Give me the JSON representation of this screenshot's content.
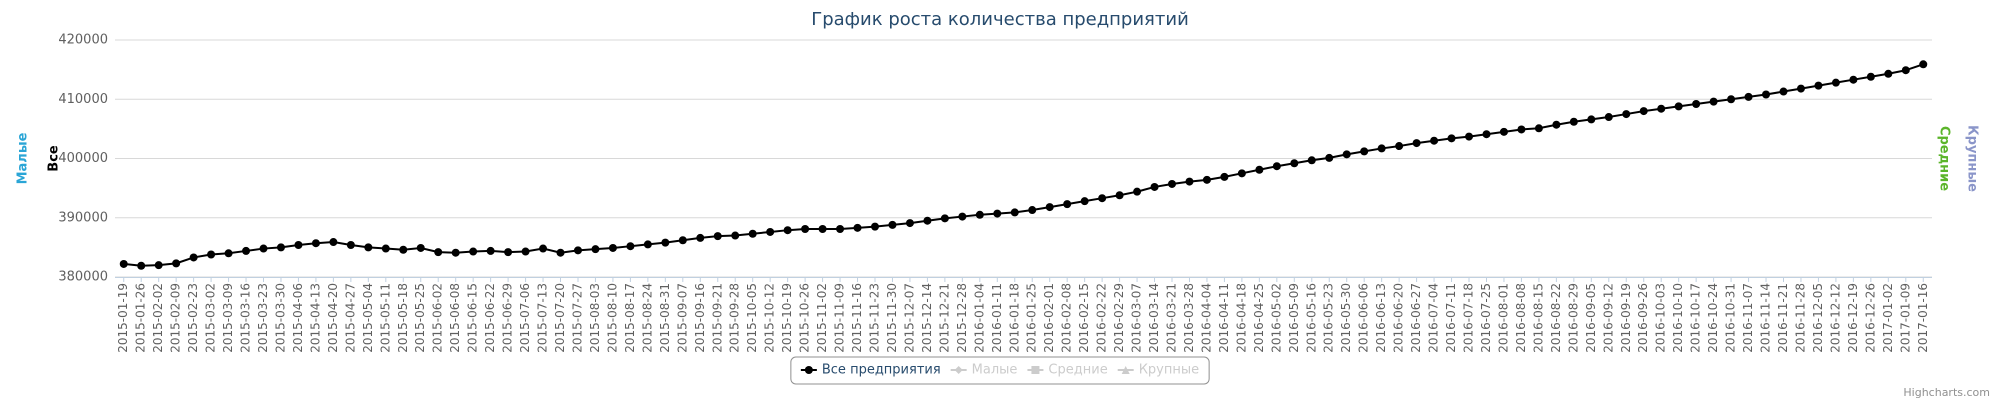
{
  "chart_data": {
    "type": "line",
    "title": "График роста количества предприятий",
    "axis_titles_left": [
      {
        "text": "Малые",
        "color": "#2aa5d6"
      },
      {
        "text": "Все",
        "color": "#000000"
      }
    ],
    "axis_titles_right": [
      {
        "text": "Средние",
        "color": "#5bb52a"
      },
      {
        "text": "Крупные",
        "color": "#8a95c9"
      }
    ],
    "credits": "Highcharts.com",
    "grid": true,
    "ylim": [
      380000,
      420000
    ],
    "yticks": [
      380000,
      390000,
      400000,
      410000,
      420000
    ],
    "categories": [
      "2015-01-19",
      "2015-01-26",
      "2015-02-02",
      "2015-02-09",
      "2015-02-23",
      "2015-03-02",
      "2015-03-09",
      "2015-03-16",
      "2015-03-23",
      "2015-03-30",
      "2015-04-06",
      "2015-04-13",
      "2015-04-20",
      "2015-04-27",
      "2015-05-04",
      "2015-05-11",
      "2015-05-18",
      "2015-05-25",
      "2015-06-02",
      "2015-06-08",
      "2015-06-15",
      "2015-06-22",
      "2015-06-29",
      "2015-07-06",
      "2015-07-13",
      "2015-07-20",
      "2015-07-27",
      "2015-08-03",
      "2015-08-10",
      "2015-08-17",
      "2015-08-24",
      "2015-08-31",
      "2015-09-07",
      "2015-09-16",
      "2015-09-21",
      "2015-09-28",
      "2015-10-05",
      "2015-10-12",
      "2015-10-19",
      "2015-10-26",
      "2015-11-02",
      "2015-11-09",
      "2015-11-16",
      "2015-11-23",
      "2015-11-30",
      "2015-12-07",
      "2015-12-14",
      "2015-12-21",
      "2015-12-28",
      "2016-01-04",
      "2016-01-11",
      "2016-01-18",
      "2016-01-25",
      "2016-02-01",
      "2016-02-08",
      "2016-02-15",
      "2016-02-22",
      "2016-02-29",
      "2016-03-07",
      "2016-03-14",
      "2016-03-21",
      "2016-03-28",
      "2016-04-04",
      "2016-04-11",
      "2016-04-18",
      "2016-04-25",
      "2016-05-02",
      "2016-05-09",
      "2016-05-16",
      "2016-05-23",
      "2016-05-30",
      "2016-06-06",
      "2016-06-13",
      "2016-06-20",
      "2016-06-27",
      "2016-07-04",
      "2016-07-11",
      "2016-07-18",
      "2016-07-25",
      "2016-08-01",
      "2016-08-08",
      "2016-08-15",
      "2016-08-22",
      "2016-08-29",
      "2016-09-05",
      "2016-09-12",
      "2016-09-19",
      "2016-09-26",
      "2016-10-03",
      "2016-10-10",
      "2016-10-17",
      "2016-10-24",
      "2016-10-31",
      "2016-11-07",
      "2016-11-14",
      "2016-11-21",
      "2016-11-28",
      "2016-12-05",
      "2016-12-12",
      "2016-12-19",
      "2016-12-26",
      "2017-01-02",
      "2017-01-09",
      "2017-01-16"
    ],
    "series": [
      {
        "name": "Все предприятия",
        "color": "#000000",
        "marker": "circle",
        "visible": true,
        "values": [
          382200,
          381900,
          382000,
          382300,
          383300,
          383800,
          384000,
          384400,
          384800,
          385000,
          385400,
          385700,
          385900,
          385400,
          385000,
          384800,
          384600,
          384900,
          384200,
          384100,
          384300,
          384400,
          384200,
          384300,
          384800,
          384100,
          384500,
          384700,
          384900,
          385200,
          385500,
          385800,
          386200,
          386600,
          386900,
          387000,
          387300,
          387600,
          387900,
          388100,
          388100,
          388100,
          388300,
          388500,
          388800,
          389100,
          389500,
          389900,
          390200,
          390500,
          390700,
          390900,
          391300,
          391800,
          392300,
          392800,
          393300,
          393800,
          394400,
          395200,
          395700,
          396100,
          396400,
          396900,
          397500,
          398100,
          398700,
          399200,
          399700,
          400100,
          400700,
          401200,
          401700,
          402100,
          402600,
          403000,
          403400,
          403700,
          404100,
          404500,
          404900,
          405100,
          405700,
          406200,
          406600,
          407000,
          407500,
          408000,
          408400,
          408800,
          409200,
          409600,
          410000,
          410400,
          410800,
          411300,
          411800,
          412300,
          412800,
          413300,
          413800,
          414300,
          414900,
          415900
        ]
      },
      {
        "name": "Малые",
        "color": "#cccccc",
        "marker": "diamond",
        "visible": false
      },
      {
        "name": "Средние",
        "color": "#cccccc",
        "marker": "square",
        "visible": false
      },
      {
        "name": "Крупные",
        "color": "#cccccc",
        "marker": "triangle",
        "visible": false
      }
    ]
  }
}
